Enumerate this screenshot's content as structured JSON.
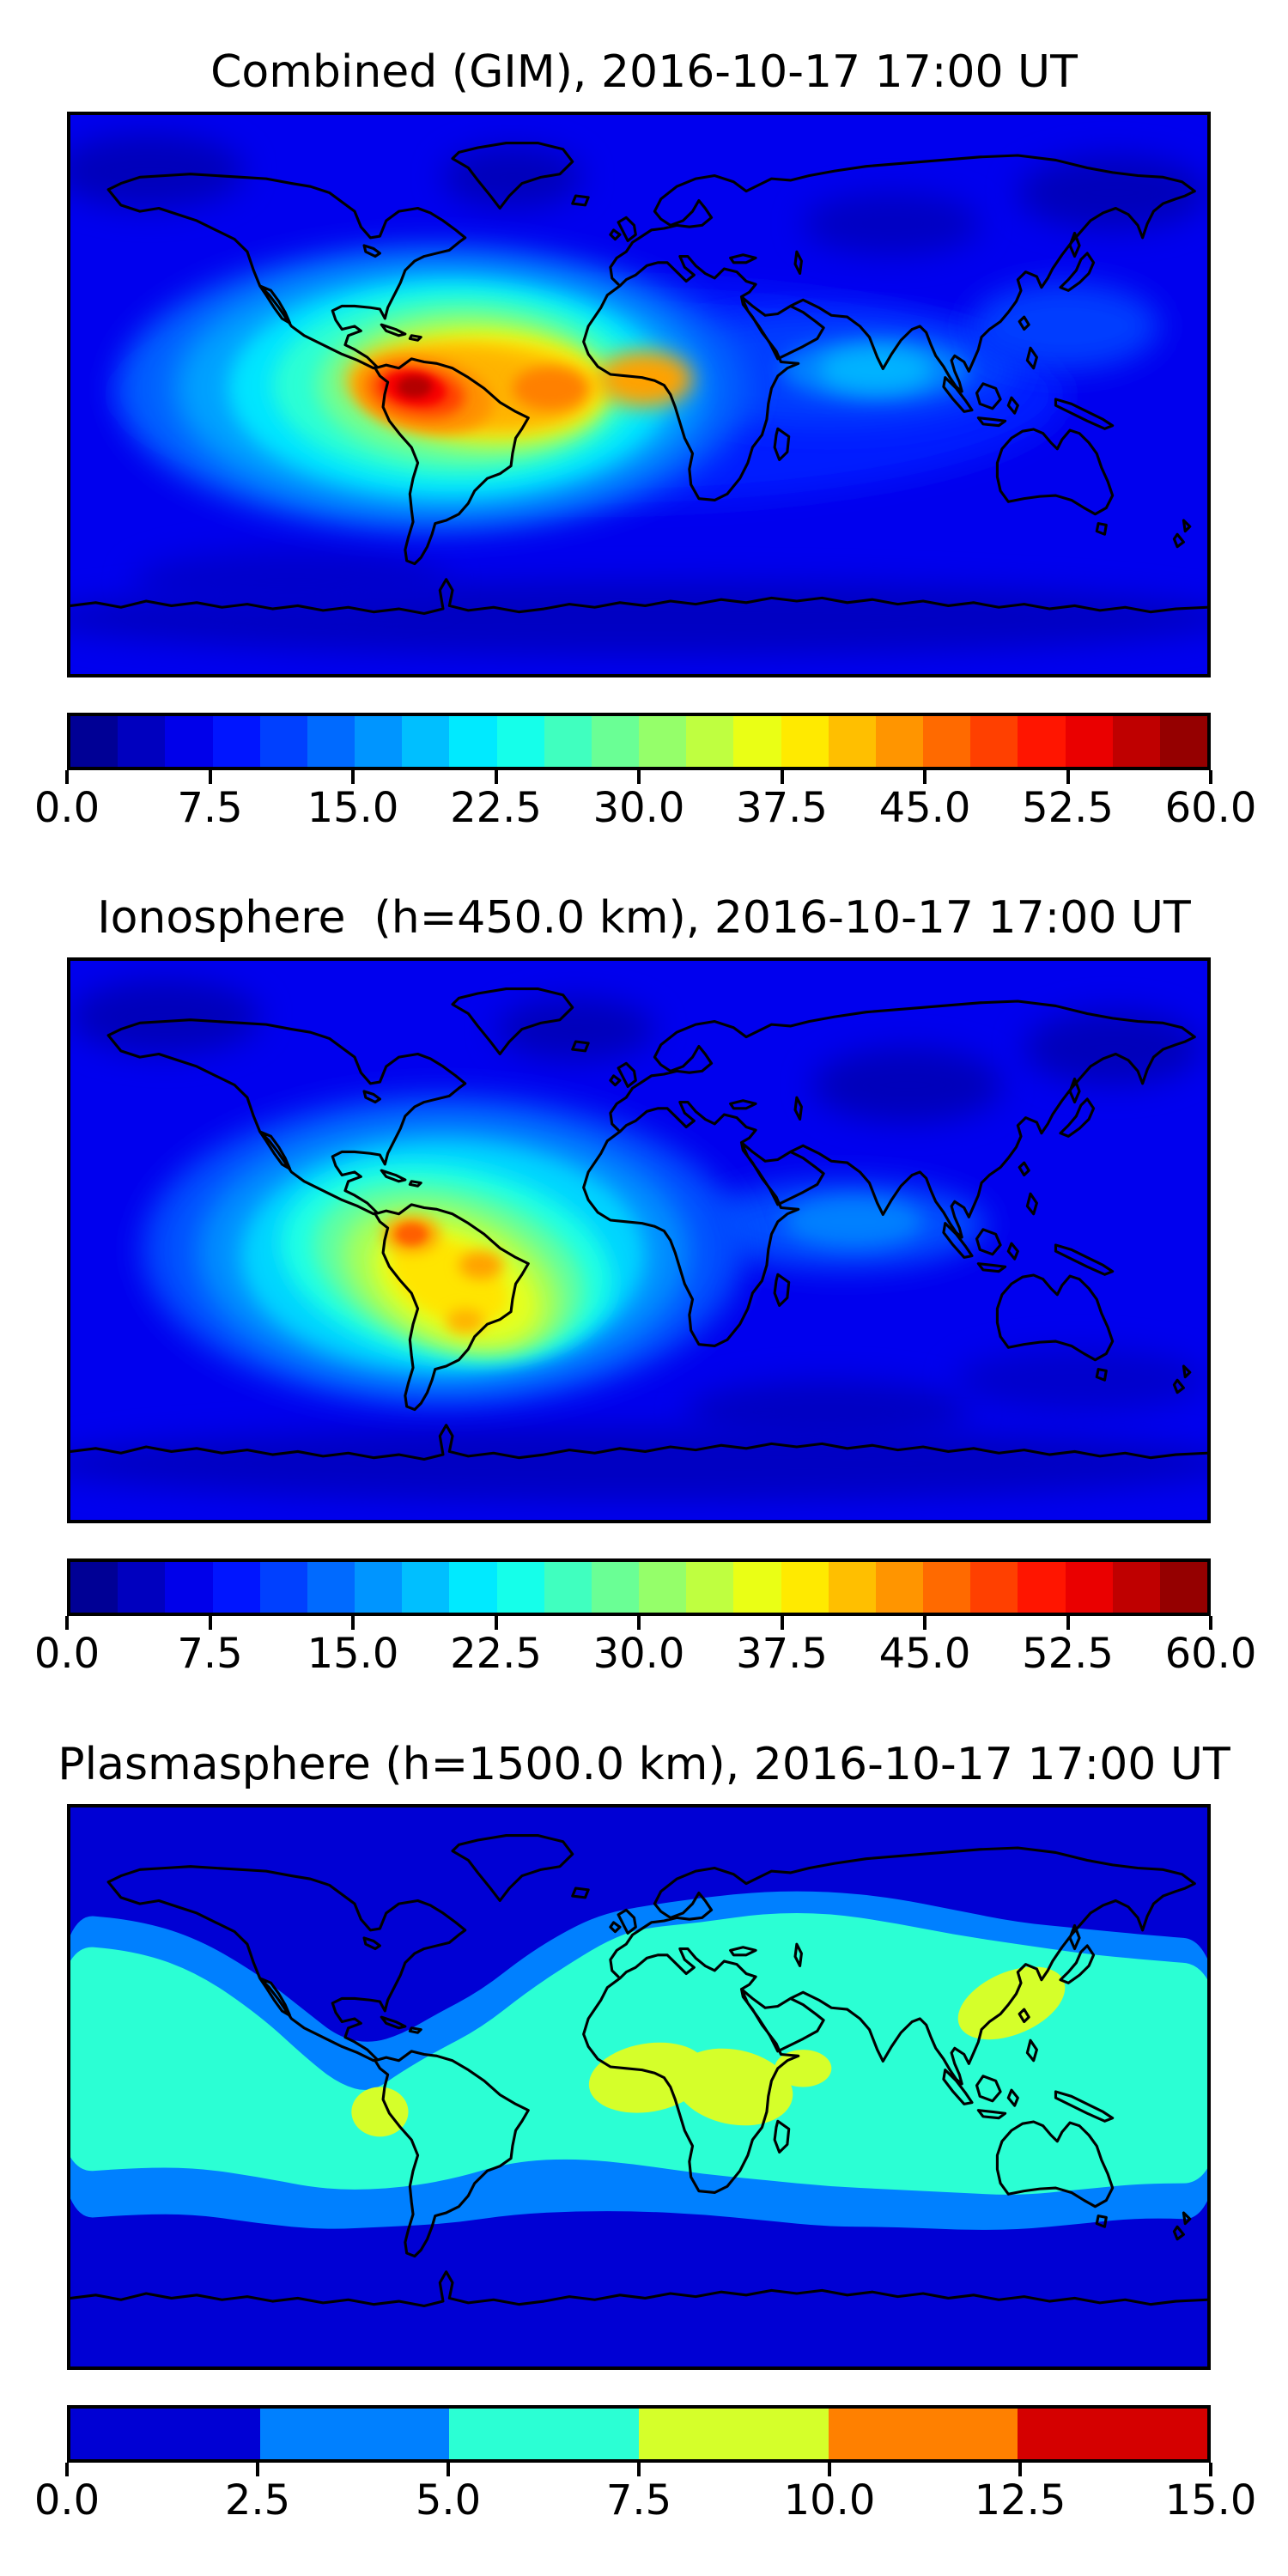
{
  "panels": [
    {
      "title": "Combined (GIM), 2016-10-17 17:00 UT",
      "colorbar": {
        "tick_labels": [
          "0.0",
          "7.5",
          "15.0",
          "22.5",
          "30.0",
          "37.5",
          "45.0",
          "52.5",
          "60.0"
        ],
        "tick_values": [
          0,
          7.5,
          15,
          22.5,
          30,
          37.5,
          45,
          52.5,
          60
        ],
        "vmin": 0,
        "vmax": 60,
        "n_levels": 24,
        "colormap": "jet"
      }
    },
    {
      "title": "Ionosphere  (h=450.0 km), 2016-10-17 17:00 UT",
      "colorbar": {
        "tick_labels": [
          "0.0",
          "7.5",
          "15.0",
          "22.5",
          "30.0",
          "37.5",
          "45.0",
          "52.5",
          "60.0"
        ],
        "tick_values": [
          0,
          7.5,
          15,
          22.5,
          30,
          37.5,
          45,
          52.5,
          60
        ],
        "vmin": 0,
        "vmax": 60,
        "n_levels": 24,
        "colormap": "jet"
      }
    },
    {
      "title": "Plasmasphere (h=1500.0 km), 2016-10-17 17:00 UT",
      "colorbar": {
        "tick_labels": [
          "0.0",
          "2.5",
          "5.0",
          "7.5",
          "10.0",
          "12.5",
          "15.0"
        ],
        "tick_values": [
          0,
          2.5,
          5,
          7.5,
          10,
          12.5,
          15
        ],
        "vmin": 0,
        "vmax": 15,
        "n_levels": 6,
        "colormap": "jet"
      }
    }
  ],
  "chart_data": [
    {
      "type": "heatmap",
      "title": "Combined (GIM), 2016-10-17 17:00 UT",
      "projection": "equirectangular",
      "lon_range": [
        -180,
        180
      ],
      "lat_range": [
        -90,
        90
      ],
      "vmin": 0,
      "vmax": 60,
      "levels": 24,
      "colormap": "jet",
      "legend_position": "bottom",
      "peak": {
        "value": 58,
        "lon": -71,
        "lat": 2
      },
      "secondary_peaks": [
        {
          "value": 45,
          "lon": -28,
          "lat": 2
        },
        {
          "value": 43,
          "lon": 2,
          "lat": 5
        }
      ],
      "base_value": 6.5,
      "blobs": [
        {
          "lon": -155,
          "lat": 72,
          "rx": 30,
          "ry": 12,
          "v": 3.5,
          "rot": 0,
          "blur": 6
        },
        {
          "lon": -40,
          "lat": 70,
          "rx": 22,
          "ry": 10,
          "v": 3.5,
          "rot": 0,
          "blur": 6
        },
        {
          "lon": 80,
          "lat": 55,
          "rx": 28,
          "ry": 10,
          "v": 4,
          "rot": 0,
          "blur": 6
        },
        {
          "lon": 150,
          "lat": 65,
          "rx": 30,
          "ry": 12,
          "v": 3.5,
          "rot": 0,
          "blur": 6
        },
        {
          "lon": 0,
          "lat": -72,
          "rx": 190,
          "ry": 12,
          "v": 4,
          "rot": 0,
          "blur": 6
        },
        {
          "lon": -110,
          "lat": -60,
          "rx": 50,
          "ry": 10,
          "v": 4.5,
          "rot": 0,
          "blur": 6
        },
        {
          "lon": -15,
          "lat": 0,
          "rx": 150,
          "ry": 35,
          "v": 9,
          "rot": 0,
          "blur": 6
        },
        {
          "lon": 60,
          "lat": 8,
          "rx": 60,
          "ry": 18,
          "v": 11,
          "rot": 0,
          "blur": 6
        },
        {
          "lon": 135,
          "lat": 22,
          "rx": 30,
          "ry": 14,
          "v": 11,
          "rot": 0,
          "blur": 6
        },
        {
          "lon": 75,
          "lat": 8,
          "rx": 30,
          "ry": 10,
          "v": 15,
          "rot": 0,
          "blur": 5
        },
        {
          "lon": 75,
          "lat": 8,
          "rx": 18,
          "ry": 7,
          "v": 18,
          "rot": 0,
          "blur": 4
        },
        {
          "lon": -65,
          "lat": 2,
          "rx": 100,
          "ry": 46,
          "v": 13,
          "rot": 0,
          "blur": 6
        },
        {
          "lon": -63,
          "lat": 2,
          "rx": 84,
          "ry": 40,
          "v": 17,
          "rot": 0,
          "blur": 6
        },
        {
          "lon": -60,
          "lat": 2,
          "rx": 70,
          "ry": 35,
          "v": 21,
          "rot": 0,
          "blur": 5
        },
        {
          "lon": -58,
          "lat": 3,
          "rx": 58,
          "ry": 30,
          "v": 25,
          "rot": 0,
          "blur": 5
        },
        {
          "lon": -55,
          "lat": 3,
          "rx": 47,
          "ry": 25,
          "v": 29,
          "rot": 0,
          "blur": 5
        },
        {
          "lon": -50,
          "lat": 3,
          "rx": 40,
          "ry": 20,
          "v": 33,
          "rot": 5,
          "blur": 4
        },
        {
          "lon": -47,
          "lat": 3,
          "rx": 34,
          "ry": 16,
          "v": 37,
          "rot": 3,
          "blur": 4
        },
        {
          "lon": -42,
          "lat": 4,
          "rx": 32,
          "ry": 12,
          "v": 40,
          "rot": 3,
          "blur": 4
        },
        {
          "lon": -55,
          "lat": 2,
          "rx": 38,
          "ry": 14,
          "v": 42,
          "rot": 5,
          "blur": 4
        },
        {
          "lon": 2,
          "lat": 5,
          "rx": 15,
          "ry": 9,
          "v": 43,
          "rot": 0,
          "blur": 4
        },
        {
          "lon": -28,
          "lat": 2,
          "rx": 12,
          "ry": 7,
          "v": 45,
          "rot": 0,
          "blur": 3
        },
        {
          "lon": -68,
          "lat": 0,
          "rx": 22,
          "ry": 12,
          "v": 44,
          "rot": 10,
          "blur": 3
        },
        {
          "lon": -70,
          "lat": 1,
          "rx": 15,
          "ry": 8,
          "v": 49,
          "rot": 10,
          "blur": 3
        },
        {
          "lon": -71,
          "lat": 2,
          "rx": 10,
          "ry": 5.5,
          "v": 53,
          "rot": 10,
          "blur": 2
        },
        {
          "lon": -71,
          "lat": 2.5,
          "rx": 5.5,
          "ry": 3.5,
          "v": 57,
          "rot": 0,
          "blur": 2
        }
      ]
    },
    {
      "type": "heatmap",
      "title": "Ionosphere  (h=450.0 km), 2016-10-17 17:00 UT",
      "projection": "equirectangular",
      "lon_range": [
        -180,
        180
      ],
      "lat_range": [
        -90,
        90
      ],
      "vmin": 0,
      "vmax": 60,
      "levels": 24,
      "colormap": "jet",
      "legend_position": "bottom",
      "peak": {
        "value": 48,
        "lon": -72,
        "lat": 2
      },
      "secondary_peaks": [
        {
          "value": 43,
          "lon": -50,
          "lat": -8
        },
        {
          "value": 42,
          "lon": -55,
          "lat": -26
        }
      ],
      "base_value": 6.5,
      "blobs": [
        {
          "lon": -150,
          "lat": 72,
          "rx": 30,
          "ry": 12,
          "v": 3.5,
          "rot": 0,
          "blur": 6
        },
        {
          "lon": -20,
          "lat": 68,
          "rx": 25,
          "ry": 10,
          "v": 3.5,
          "rot": 0,
          "blur": 6
        },
        {
          "lon": 85,
          "lat": 50,
          "rx": 30,
          "ry": 12,
          "v": 3.5,
          "rot": 0,
          "blur": 6
        },
        {
          "lon": 150,
          "lat": 62,
          "rx": 28,
          "ry": 12,
          "v": 3.5,
          "rot": 0,
          "blur": 6
        },
        {
          "lon": 60,
          "lat": -55,
          "rx": 45,
          "ry": 10,
          "v": 4,
          "rot": 0,
          "blur": 6
        },
        {
          "lon": 140,
          "lat": -45,
          "rx": 40,
          "ry": 10,
          "v": 4.5,
          "rot": 0,
          "blur": 6
        },
        {
          "lon": 0,
          "lat": -72,
          "rx": 190,
          "ry": 12,
          "v": 4,
          "rot": 0,
          "blur": 6
        },
        {
          "lon": 65,
          "lat": 5,
          "rx": 45,
          "ry": 14,
          "v": 12,
          "rot": 0,
          "blur": 6
        },
        {
          "lon": 68,
          "lat": 6,
          "rx": 22,
          "ry": 8,
          "v": 15,
          "rot": 0,
          "blur": 4
        },
        {
          "lon": -62,
          "lat": -3,
          "rx": 95,
          "ry": 50,
          "v": 12,
          "rot": 0,
          "blur": 6
        },
        {
          "lon": -62,
          "lat": -4,
          "rx": 78,
          "ry": 43,
          "v": 16,
          "rot": 0,
          "blur": 6
        },
        {
          "lon": -62,
          "lat": -5,
          "rx": 64,
          "ry": 37,
          "v": 20,
          "rot": 0,
          "blur": 5
        },
        {
          "lon": -61,
          "lat": -7,
          "rx": 53,
          "ry": 31,
          "v": 24,
          "rot": 10,
          "blur": 5
        },
        {
          "lon": -60,
          "lat": -9,
          "rx": 44,
          "ry": 26,
          "v": 28,
          "rot": 15,
          "blur": 5
        },
        {
          "lon": -59,
          "lat": -12,
          "rx": 36,
          "ry": 22,
          "v": 32,
          "rot": 20,
          "blur": 4
        },
        {
          "lon": -58,
          "lat": -14,
          "rx": 28,
          "ry": 17,
          "v": 36,
          "rot": 25,
          "blur": 4
        },
        {
          "lon": -60,
          "lat": -13,
          "rx": 20,
          "ry": 12,
          "v": 39,
          "rot": 28,
          "blur": 3
        },
        {
          "lon": -72,
          "lat": 2,
          "rx": 9,
          "ry": 6,
          "v": 43,
          "rot": 0,
          "blur": 3
        },
        {
          "lon": -50,
          "lat": -8,
          "rx": 7,
          "ry": 4.5,
          "v": 43,
          "rot": 0,
          "blur": 3
        },
        {
          "lon": -55,
          "lat": -26,
          "rx": 6,
          "ry": 4,
          "v": 42,
          "rot": 0,
          "blur": 3
        },
        {
          "lon": -72,
          "lat": 2,
          "rx": 5,
          "ry": 3.5,
          "v": 47,
          "rot": 0,
          "blur": 2
        }
      ]
    },
    {
      "type": "filled-contour-discrete",
      "title": "Plasmasphere (h=1500.0 km), 2016-10-17 17:00 UT",
      "projection": "equirectangular",
      "lon_range": [
        -180,
        180
      ],
      "lat_range": [
        -90,
        90
      ],
      "vmin": 0,
      "vmax": 15,
      "levels": 6,
      "colormap": "jet",
      "legend_position": "bottom",
      "peak": {
        "value": 9,
        "lon": 20,
        "lat": 3
      },
      "base_value": 1.25,
      "bands": [
        {
          "value": 3.75,
          "points": [
            [
              -185,
              56
            ],
            [
              -160,
              54
            ],
            [
              -140,
              48
            ],
            [
              -120,
              36
            ],
            [
              -105,
              24
            ],
            [
              -95,
              16
            ],
            [
              -85,
              14
            ],
            [
              -75,
              17
            ],
            [
              -65,
              23
            ],
            [
              -50,
              31
            ],
            [
              -35,
              43
            ],
            [
              -20,
              52
            ],
            [
              -10,
              56
            ],
            [
              0,
              58
            ],
            [
              20,
              61
            ],
            [
              40,
              63
            ],
            [
              60,
              63
            ],
            [
              80,
              61
            ],
            [
              100,
              57
            ],
            [
              120,
              53
            ],
            [
              140,
              51
            ],
            [
              160,
              49
            ],
            [
              185,
              47
            ],
            [
              185,
              -43
            ],
            [
              160,
              -42
            ],
            [
              140,
              -44
            ],
            [
              120,
              -46
            ],
            [
              100,
              -46
            ],
            [
              80,
              -45
            ],
            [
              60,
              -45
            ],
            [
              40,
              -43
            ],
            [
              20,
              -41
            ],
            [
              0,
              -40
            ],
            [
              -20,
              -40
            ],
            [
              -40,
              -41
            ],
            [
              -60,
              -44
            ],
            [
              -80,
              -45
            ],
            [
              -100,
              -46
            ],
            [
              -120,
              -44
            ],
            [
              -140,
              -41
            ],
            [
              -160,
              -41
            ],
            [
              -185,
              -43
            ]
          ]
        },
        {
          "value": 6.25,
          "points": [
            [
              -185,
              46
            ],
            [
              -160,
              44
            ],
            [
              -140,
              37
            ],
            [
              -120,
              23
            ],
            [
              -105,
              9
            ],
            [
              -95,
              1
            ],
            [
              -85,
              -2
            ],
            [
              -75,
              5
            ],
            [
              -65,
              11
            ],
            [
              -50,
              19
            ],
            [
              -35,
              31
            ],
            [
              -20,
              41
            ],
            [
              -10,
              47
            ],
            [
              0,
              51
            ],
            [
              20,
              53
            ],
            [
              40,
              56
            ],
            [
              60,
              56
            ],
            [
              80,
              53
            ],
            [
              100,
              49
            ],
            [
              120,
              46
            ],
            [
              140,
              43
            ],
            [
              160,
              41
            ],
            [
              185,
              39
            ],
            [
              185,
              -31
            ],
            [
              160,
              -31
            ],
            [
              140,
              -33
            ],
            [
              120,
              -35
            ],
            [
              100,
              -34
            ],
            [
              80,
              -33
            ],
            [
              60,
              -32
            ],
            [
              40,
              -30
            ],
            [
              20,
              -28
            ],
            [
              0,
              -25
            ],
            [
              -20,
              -23
            ],
            [
              -40,
              -24
            ],
            [
              -60,
              -30
            ],
            [
              -80,
              -33
            ],
            [
              -100,
              -33
            ],
            [
              -120,
              -29
            ],
            [
              -140,
              -26
            ],
            [
              -160,
              -26
            ],
            [
              -185,
              -28
            ]
          ]
        }
      ],
      "blobs": [
        {
          "lon": -82,
          "lat": -8,
          "rx": 9,
          "ry": 8,
          "v": 8.75,
          "rot": 0,
          "blur": 0
        },
        {
          "lon": 3,
          "lat": 3,
          "rx": 19,
          "ry": 11,
          "v": 8.75,
          "rot": -10,
          "blur": 0
        },
        {
          "lon": 30,
          "lat": 0,
          "rx": 19,
          "ry": 12,
          "v": 8.75,
          "rot": 12,
          "blur": 0
        },
        {
          "lon": 52,
          "lat": 6,
          "rx": 9,
          "ry": 6,
          "v": 8.75,
          "rot": 0,
          "blur": 0
        },
        {
          "lon": 118,
          "lat": 27,
          "rx": 18,
          "ry": 10,
          "v": 8.75,
          "rot": -24,
          "blur": 0
        }
      ]
    }
  ]
}
